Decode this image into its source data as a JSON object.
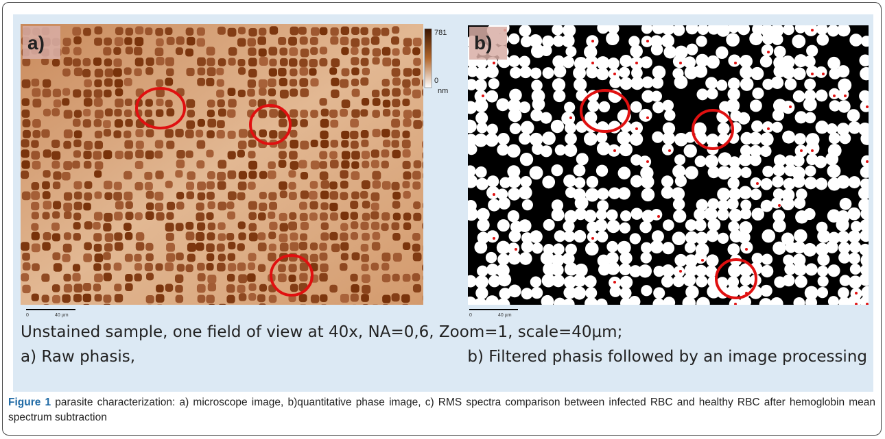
{
  "panels": [
    {
      "label": "a)",
      "colorbar": {
        "max": "781",
        "min": "0",
        "unit": "nm"
      },
      "scale": {
        "start": "0",
        "end": "40 µm"
      }
    },
    {
      "label": "b)",
      "scale": {
        "start": "0",
        "end": "40 µm"
      }
    }
  ],
  "description": {
    "line1": "Unstained sample, one field of view at 40x, NA=0,6, Zoom=1, scale=40µm;",
    "left": "a) Raw phasis,",
    "right": "b) Filtered phasis followed by an image processing"
  },
  "caption": {
    "label": "Figure 1",
    "text": "parasite characterization: a) microscope image, b)quantitative phase image, c) RMS spectra comparison between infected RBC and healthy RBC after hemoglobin mean spectrum subtraction"
  }
}
